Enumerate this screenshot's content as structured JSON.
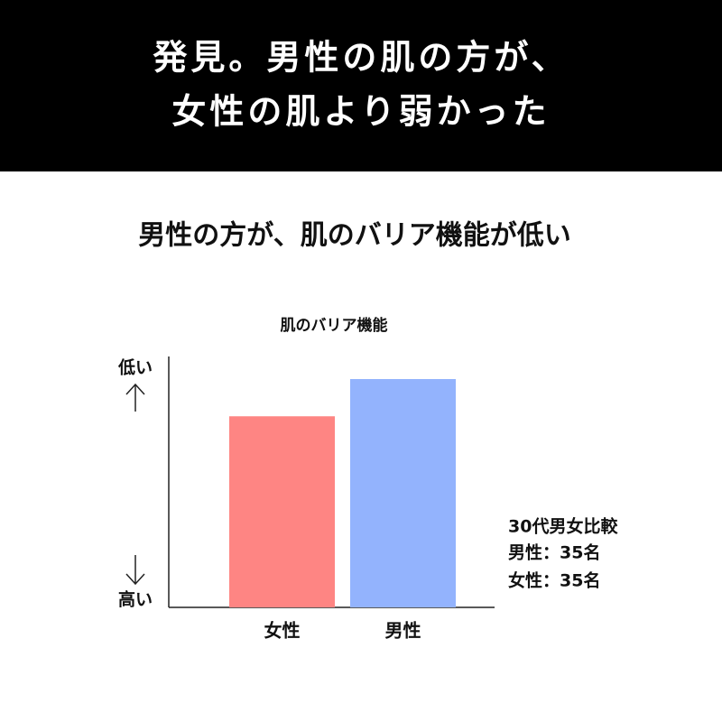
{
  "header": {
    "title_lines": [
      "発見。男性の肌の方が、",
      "女性の肌より弱かった"
    ]
  },
  "headline": "男性の方が、肌のバリア機能が低い",
  "chart_data": {
    "type": "bar",
    "title": "肌のバリア機能",
    "categories": [
      "女性",
      "男性"
    ],
    "values": [
      77,
      92
    ],
    "colors": [
      "#fe8583",
      "#93b3fd"
    ],
    "ylim": [
      0,
      100
    ],
    "y_top_label": "低い",
    "y_bottom_label": "高い"
  },
  "note": {
    "lines": [
      "30代男女比較",
      "男性：35名",
      "女性：35名"
    ]
  }
}
